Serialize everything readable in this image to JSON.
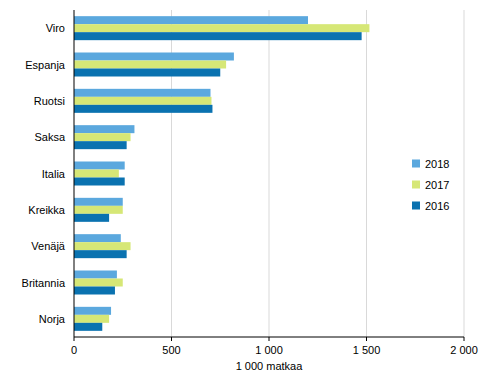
{
  "chart_data": {
    "type": "bar",
    "orientation": "horizontal",
    "categories": [
      "Viro",
      "Espanja",
      "Ruotsi",
      "Saksa",
      "Italia",
      "Kreikka",
      "Venäjä",
      "Britannia",
      "Norja"
    ],
    "series": [
      {
        "name": "2018",
        "color": "#5ba8de",
        "values": [
          1200,
          820,
          700,
          310,
          260,
          250,
          240,
          220,
          190
        ]
      },
      {
        "name": "2017",
        "color": "#d6e776",
        "values": [
          1515,
          780,
          705,
          290,
          230,
          250,
          290,
          250,
          180
        ]
      },
      {
        "name": "2016",
        "color": "#0a72b0",
        "values": [
          1475,
          750,
          710,
          270,
          260,
          180,
          270,
          210,
          145
        ]
      }
    ],
    "x_label": "1 000 matkaa",
    "xlim": [
      0,
      2000
    ],
    "xticks": [
      0,
      500,
      {
        "value": 1000,
        "label": "1 000"
      },
      {
        "value": 1500,
        "label": "1 500"
      },
      {
        "value": 2000,
        "label": "2 000"
      }
    ],
    "grid": true,
    "legend": "right"
  }
}
